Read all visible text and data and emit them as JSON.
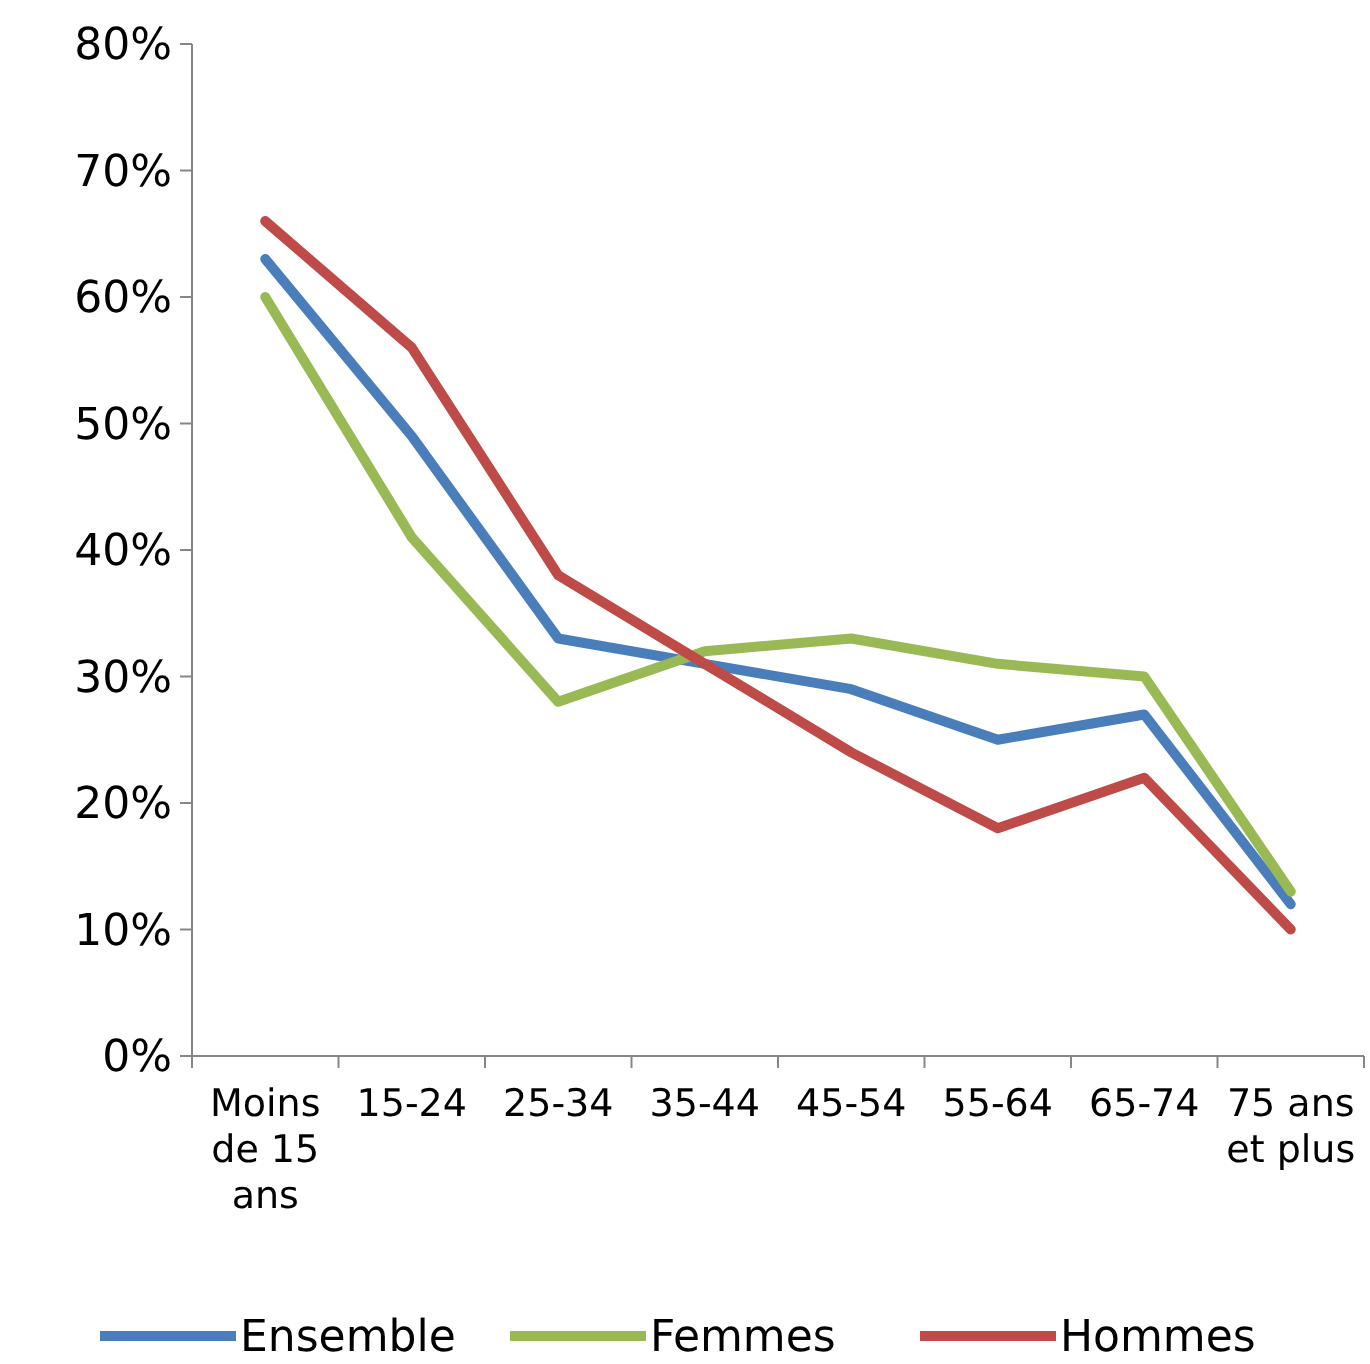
{
  "chart_data": {
    "type": "line",
    "categories": [
      "Moins de 15 ans",
      "15-24",
      "25-34",
      "35-44",
      "45-54",
      "55-64",
      "65-74",
      "75 ans et plus"
    ],
    "series": [
      {
        "name": "Ensemble",
        "color": "#4a7ebb",
        "values": [
          63,
          49,
          33,
          31,
          29,
          25,
          27,
          12
        ]
      },
      {
        "name": "Femmes",
        "color": "#98b954",
        "values": [
          60,
          41,
          28,
          32,
          33,
          31,
          30,
          13
        ]
      },
      {
        "name": "Hommes",
        "color": "#be4b48",
        "values": [
          66,
          56,
          38,
          31,
          24,
          18,
          22,
          10
        ]
      }
    ],
    "ylim": [
      0,
      80
    ],
    "yticks": [
      {
        "value": 0,
        "label": "0%"
      },
      {
        "value": 10,
        "label": "10%"
      },
      {
        "value": 20,
        "label": "20%"
      },
      {
        "value": 30,
        "label": "30%"
      },
      {
        "value": 40,
        "label": "40%"
      },
      {
        "value": 50,
        "label": "50%"
      },
      {
        "value": 60,
        "label": "60%"
      },
      {
        "value": 70,
        "label": "70%"
      },
      {
        "value": 80,
        "label": "80%"
      }
    ],
    "grid": false,
    "legend": "bottom",
    "marker": "none",
    "line_style": "solid"
  }
}
